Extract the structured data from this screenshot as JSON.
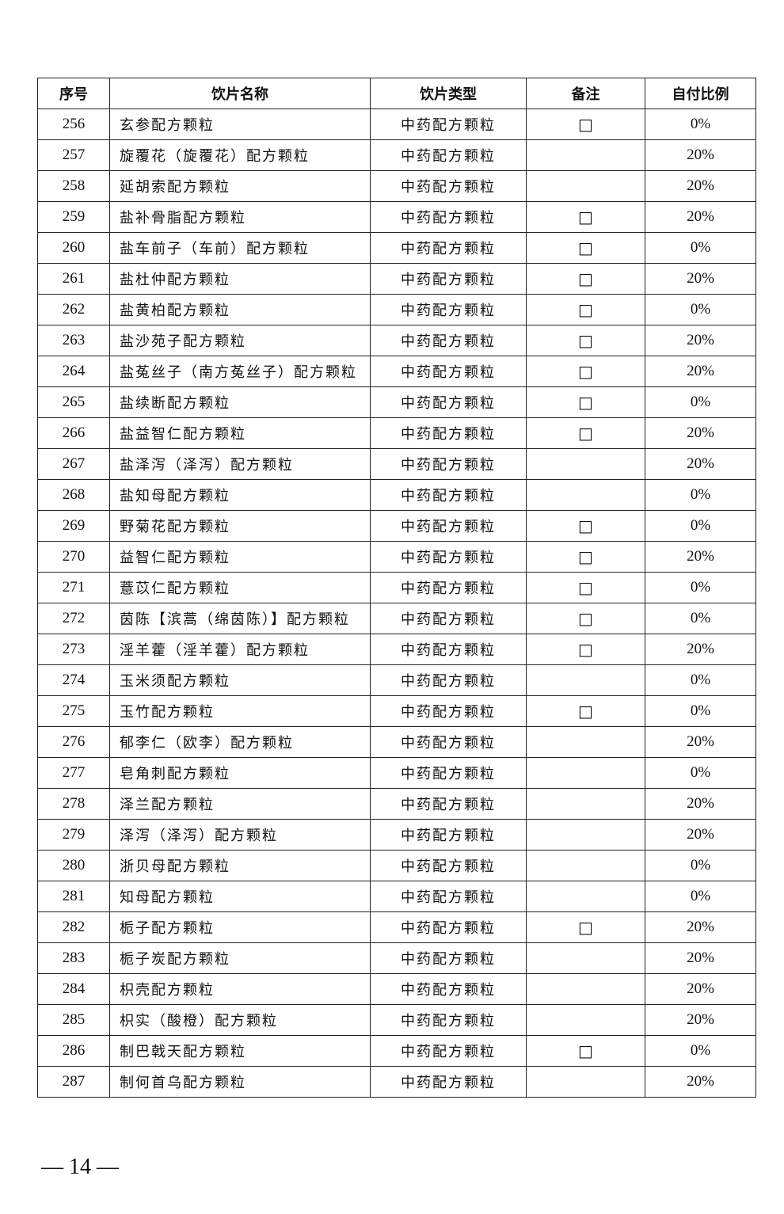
{
  "table": {
    "headers": [
      "序号",
      "饮片名称",
      "饮片类型",
      "备注",
      "自付比例"
    ],
    "rows": [
      {
        "no": "256",
        "name": "玄参配方颗粒",
        "type": "中药配方颗粒",
        "note": "□",
        "ratio": "0%"
      },
      {
        "no": "257",
        "name": "旋覆花（旋覆花）配方颗粒",
        "type": "中药配方颗粒",
        "note": "",
        "ratio": "20%"
      },
      {
        "no": "258",
        "name": "延胡索配方颗粒",
        "type": "中药配方颗粒",
        "note": "",
        "ratio": "20%"
      },
      {
        "no": "259",
        "name": "盐补骨脂配方颗粒",
        "type": "中药配方颗粒",
        "note": "□",
        "ratio": "20%"
      },
      {
        "no": "260",
        "name": "盐车前子（车前）配方颗粒",
        "type": "中药配方颗粒",
        "note": "□",
        "ratio": "0%"
      },
      {
        "no": "261",
        "name": "盐杜仲配方颗粒",
        "type": "中药配方颗粒",
        "note": "□",
        "ratio": "20%"
      },
      {
        "no": "262",
        "name": "盐黄柏配方颗粒",
        "type": "中药配方颗粒",
        "note": "□",
        "ratio": "0%"
      },
      {
        "no": "263",
        "name": "盐沙苑子配方颗粒",
        "type": "中药配方颗粒",
        "note": "□",
        "ratio": "20%"
      },
      {
        "no": "264",
        "name": "盐菟丝子（南方菟丝子）配方颗粒",
        "type": "中药配方颗粒",
        "note": "□",
        "ratio": "20%"
      },
      {
        "no": "265",
        "name": "盐续断配方颗粒",
        "type": "中药配方颗粒",
        "note": "□",
        "ratio": "0%"
      },
      {
        "no": "266",
        "name": "盐益智仁配方颗粒",
        "type": "中药配方颗粒",
        "note": "□",
        "ratio": "20%"
      },
      {
        "no": "267",
        "name": "盐泽泻（泽泻）配方颗粒",
        "type": "中药配方颗粒",
        "note": "",
        "ratio": "20%"
      },
      {
        "no": "268",
        "name": "盐知母配方颗粒",
        "type": "中药配方颗粒",
        "note": "",
        "ratio": "0%"
      },
      {
        "no": "269",
        "name": "野菊花配方颗粒",
        "type": "中药配方颗粒",
        "note": "□",
        "ratio": "0%"
      },
      {
        "no": "270",
        "name": "益智仁配方颗粒",
        "type": "中药配方颗粒",
        "note": "□",
        "ratio": "20%"
      },
      {
        "no": "271",
        "name": "薏苡仁配方颗粒",
        "type": "中药配方颗粒",
        "note": "□",
        "ratio": "0%"
      },
      {
        "no": "272",
        "name": "茵陈【滨蒿（绵茵陈）】配方颗粒",
        "type": "中药配方颗粒",
        "note": "□",
        "ratio": "0%"
      },
      {
        "no": "273",
        "name": "淫羊藿（淫羊藿）配方颗粒",
        "type": "中药配方颗粒",
        "note": "□",
        "ratio": "20%"
      },
      {
        "no": "274",
        "name": "玉米须配方颗粒",
        "type": "中药配方颗粒",
        "note": "",
        "ratio": "0%"
      },
      {
        "no": "275",
        "name": "玉竹配方颗粒",
        "type": "中药配方颗粒",
        "note": "□",
        "ratio": "0%"
      },
      {
        "no": "276",
        "name": "郁李仁（欧李）配方颗粒",
        "type": "中药配方颗粒",
        "note": "",
        "ratio": "20%"
      },
      {
        "no": "277",
        "name": "皂角刺配方颗粒",
        "type": "中药配方颗粒",
        "note": "",
        "ratio": "0%"
      },
      {
        "no": "278",
        "name": "泽兰配方颗粒",
        "type": "中药配方颗粒",
        "note": "",
        "ratio": "20%"
      },
      {
        "no": "279",
        "name": "泽泻（泽泻）配方颗粒",
        "type": "中药配方颗粒",
        "note": "",
        "ratio": "20%"
      },
      {
        "no": "280",
        "name": "浙贝母配方颗粒",
        "type": "中药配方颗粒",
        "note": "",
        "ratio": "0%"
      },
      {
        "no": "281",
        "name": "知母配方颗粒",
        "type": "中药配方颗粒",
        "note": "",
        "ratio": "0%"
      },
      {
        "no": "282",
        "name": "栀子配方颗粒",
        "type": "中药配方颗粒",
        "note": "□",
        "ratio": "20%"
      },
      {
        "no": "283",
        "name": "栀子炭配方颗粒",
        "type": "中药配方颗粒",
        "note": "",
        "ratio": "20%"
      },
      {
        "no": "284",
        "name": "枳壳配方颗粒",
        "type": "中药配方颗粒",
        "note": "",
        "ratio": "20%"
      },
      {
        "no": "285",
        "name": "枳实（酸橙）配方颗粒",
        "type": "中药配方颗粒",
        "note": "",
        "ratio": "20%"
      },
      {
        "no": "286",
        "name": "制巴戟天配方颗粒",
        "type": "中药配方颗粒",
        "note": "□",
        "ratio": "0%"
      },
      {
        "no": "287",
        "name": "制何首乌配方颗粒",
        "type": "中药配方颗粒",
        "note": "",
        "ratio": "20%"
      }
    ]
  },
  "page_number": "— 14 —"
}
